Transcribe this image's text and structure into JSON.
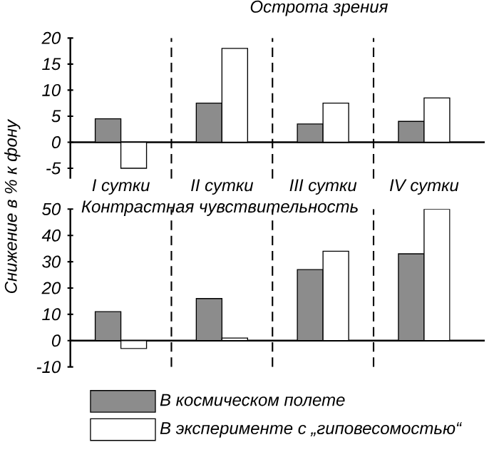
{
  "chart_data": [
    {
      "type": "bar",
      "title": "Острота зрения",
      "ylabel": "Снижение в % к фону",
      "categories": [
        "I сутки",
        "II сутки",
        "III сутки",
        "IV сутки"
      ],
      "series": [
        {
          "color": "#8c8c8c",
          "values": [
            4.5,
            7.5,
            3.5,
            4
          ]
        },
        {
          "color": "#ffffff",
          "values": [
            -5,
            18,
            7.5,
            8.5
          ]
        }
      ],
      "ylim": [
        -7,
        20
      ],
      "yticks": [
        -5,
        0,
        5,
        10,
        15,
        20
      ]
    },
    {
      "type": "bar",
      "title": "Контрастная чувствительность",
      "categories": [
        null,
        null,
        null,
        null
      ],
      "series": [
        {
          "name": "В космическом полете",
          "color": "#8c8c8c",
          "values": [
            11,
            16,
            27,
            33
          ]
        },
        {
          "name": "В эксперименте с „гиповесомостью“",
          "color": "#ffffff",
          "values": [
            -3,
            1,
            34,
            50
          ]
        }
      ],
      "ylim": [
        -10,
        50
      ],
      "yticks": [
        -10,
        0,
        10,
        20,
        30,
        40,
        50
      ],
      "tick_labels": "y",
      "legend": "bottom"
    }
  ]
}
